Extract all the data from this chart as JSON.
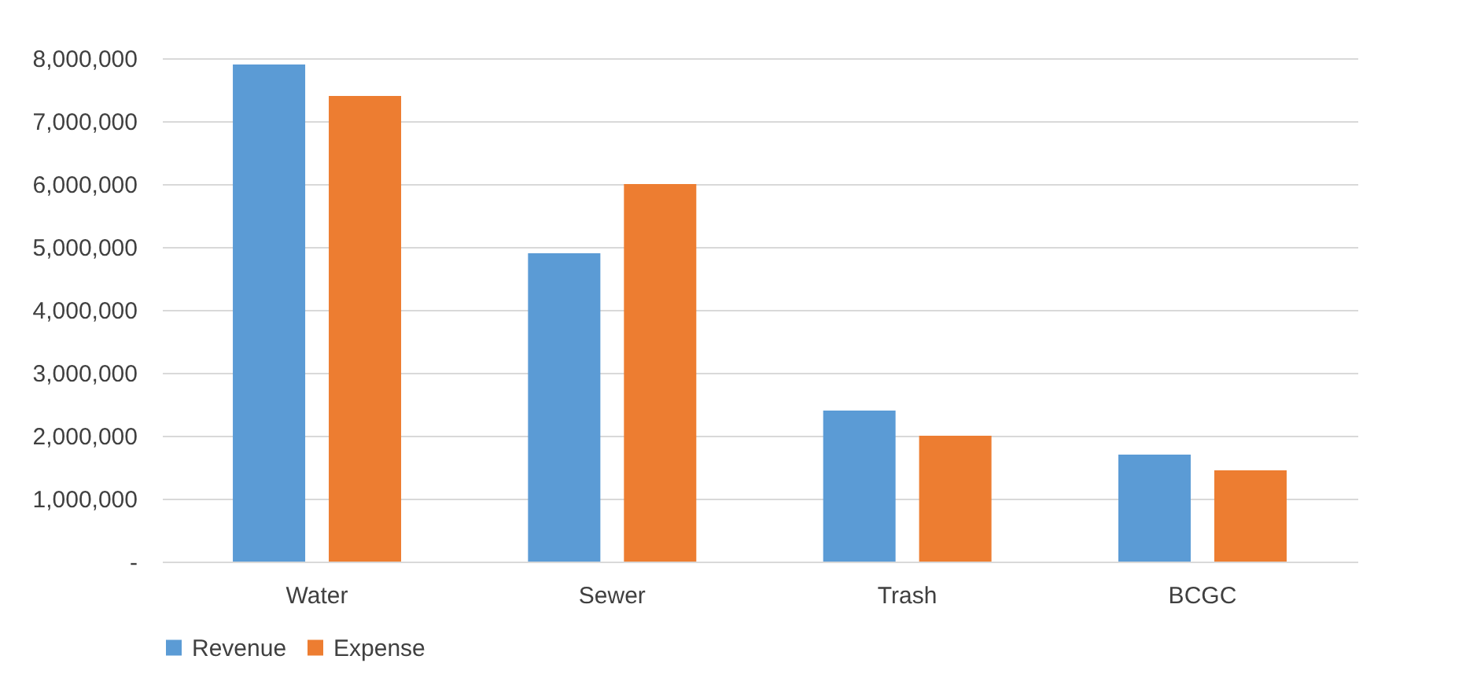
{
  "chart_data": {
    "type": "bar",
    "categories": [
      "Water",
      "Sewer",
      "Trash",
      "BCGC"
    ],
    "series": [
      {
        "name": "Revenue",
        "color": "#5b9bd5",
        "values": [
          7900000,
          4900000,
          2400000,
          1700000
        ]
      },
      {
        "name": "Expense",
        "color": "#ed7d31",
        "values": [
          7400000,
          6000000,
          2000000,
          1450000
        ]
      }
    ],
    "ylim": [
      0,
      8000000
    ],
    "yticks": [
      {
        "value": 0,
        "label": "-"
      },
      {
        "value": 1000000,
        "label": "1,000,000"
      },
      {
        "value": 2000000,
        "label": "2,000,000"
      },
      {
        "value": 3000000,
        "label": "3,000,000"
      },
      {
        "value": 4000000,
        "label": "4,000,000"
      },
      {
        "value": 5000000,
        "label": "5,000,000"
      },
      {
        "value": 6000000,
        "label": "6,000,000"
      },
      {
        "value": 7000000,
        "label": "7,000,000"
      },
      {
        "value": 8000000,
        "label": "8,000,000"
      }
    ],
    "grid": "y",
    "legend": "bottom"
  }
}
